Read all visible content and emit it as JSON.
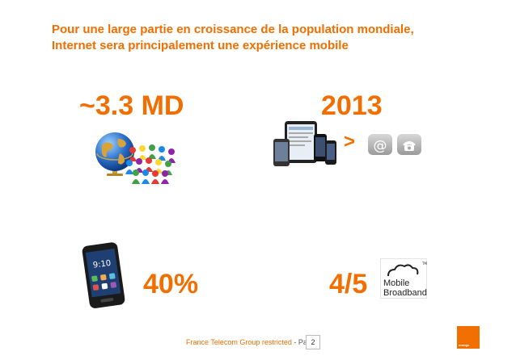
{
  "title": {
    "line1": "Pour une large partie en croissance de la population mondiale,",
    "line2": "Internet sera principalement une expérience mobile"
  },
  "stats": {
    "population": "~3.3 MD",
    "year": "2013",
    "comparison": ">",
    "percent": "40%",
    "fraction": "4/5"
  },
  "mobile_broadband": {
    "line1": "Mobile",
    "line2": "Broadband"
  },
  "footer": {
    "text": "France Telecom Group restricted",
    "separator": " - ",
    "page_label": "Page",
    "page_number": "2"
  },
  "logo": {
    "text": "orange"
  },
  "colors": {
    "accent": "#f16e00"
  },
  "icons": {
    "globe": "globe-icon",
    "people": "people-figures-icon",
    "devices": "mobile-devices-icon",
    "email": "at-sign-icon",
    "phone": "telephone-icon",
    "smartphone": "smartphone-icon",
    "cloud": "cloud-icon"
  }
}
